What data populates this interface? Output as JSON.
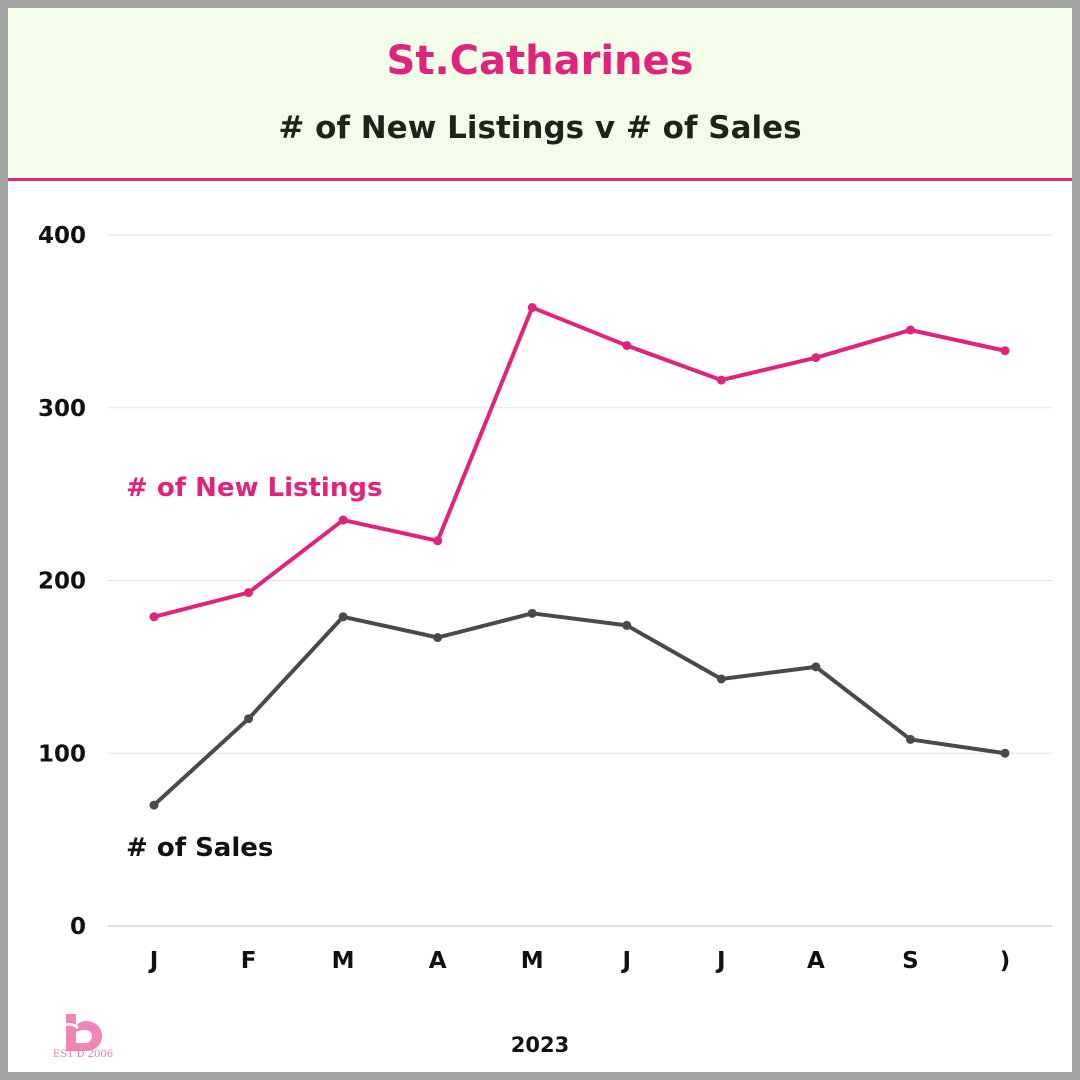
{
  "header": {
    "title": "St.Catharines",
    "subtitle": "# of New Listings v # of Sales"
  },
  "colors": {
    "accent": "#e0247c",
    "sales": "#4a4a4a",
    "header_bg": "#f3fde9",
    "grid": "#e3e3e3"
  },
  "chart_data": {
    "type": "line",
    "categories": [
      "J",
      "F",
      "M",
      "A",
      "M",
      "J",
      "J",
      "A",
      "S",
      ")"
    ],
    "xlabel": "2023",
    "ylabel": "",
    "ylim": [
      0,
      400
    ],
    "yticks": [
      "0",
      "100",
      "200",
      "300",
      "400"
    ],
    "grid": true,
    "series": [
      {
        "name": "# of New Listings",
        "color": "#e0247c",
        "values": [
          179,
          193,
          235,
          223,
          358,
          336,
          316,
          329,
          345,
          333
        ]
      },
      {
        "name": "# of Sales",
        "color": "#4a4a4a",
        "values": [
          70,
          120,
          179,
          167,
          181,
          174,
          143,
          150,
          108,
          100
        ]
      }
    ]
  },
  "logo": {
    "icon": "b-monogram-logo-icon",
    "caption": "EST'D 2006"
  }
}
